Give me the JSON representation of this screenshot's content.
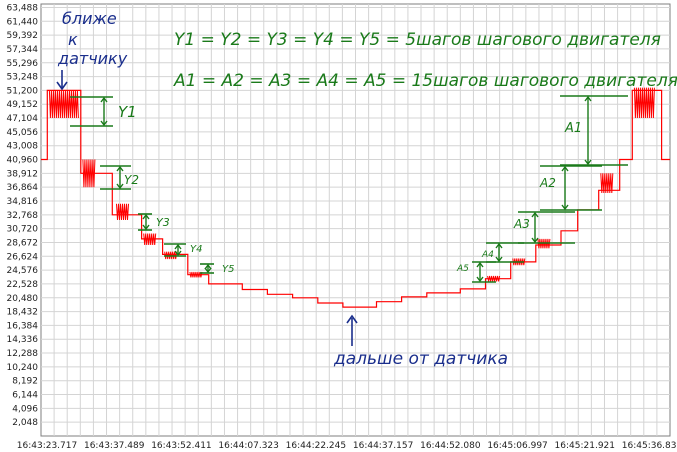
{
  "chart_data": {
    "type": "line",
    "title": "",
    "xlabel": "",
    "ylabel": "",
    "ylim": [
      0,
      64000
    ],
    "y_ticks": [
      "2,048",
      "4,096",
      "6,144",
      "8,192",
      "10,240",
      "12,288",
      "14,336",
      "16,384",
      "18,432",
      "20,480",
      "22,528",
      "24,576",
      "26,624",
      "28,672",
      "30,720",
      "32,768",
      "34,816",
      "36,864",
      "38,912",
      "40,960",
      "43,008",
      "45,056",
      "47,104",
      "49,152",
      "51,200",
      "53,248",
      "55,296",
      "57,344",
      "59,392",
      "61,440",
      "63,488"
    ],
    "x_ticks": [
      "16:43:23.717",
      "16:43:37.489",
      "16:43:52.411",
      "16:44:07.323",
      "16:44:22.245",
      "16:44:37.157",
      "16:44:52.080",
      "16:45:06.997",
      "16:45:21.921",
      "16:45:36.832"
    ],
    "grid": true,
    "series": [
      {
        "color": "#ff0000",
        "points": [
          [
            0,
            40960
          ],
          [
            1.5,
            40960
          ],
          [
            1.5,
            51200
          ],
          [
            9.5,
            51200
          ],
          [
            9.5,
            38912
          ],
          [
            17,
            38912
          ],
          [
            17,
            32768
          ],
          [
            24,
            32768
          ],
          [
            24,
            29200
          ],
          [
            29,
            29200
          ],
          [
            29,
            26900
          ],
          [
            35,
            26900
          ],
          [
            35,
            23900
          ],
          [
            40,
            23900
          ],
          [
            40,
            22528
          ],
          [
            48,
            22528
          ],
          [
            48,
            21700
          ],
          [
            54,
            21700
          ],
          [
            54,
            21000
          ],
          [
            60,
            21000
          ],
          [
            60,
            20480
          ],
          [
            66,
            20480
          ],
          [
            66,
            19700
          ],
          [
            72,
            19700
          ],
          [
            72,
            19100
          ],
          [
            80,
            19100
          ],
          [
            80,
            19900
          ],
          [
            86,
            19900
          ],
          [
            86,
            20600
          ],
          [
            92,
            20600
          ],
          [
            92,
            21200
          ],
          [
            100,
            21200
          ],
          [
            100,
            21800
          ],
          [
            106,
            21800
          ],
          [
            106,
            23300
          ],
          [
            112,
            23300
          ],
          [
            112,
            25800
          ],
          [
            118,
            25800
          ],
          [
            118,
            28300
          ],
          [
            124,
            28300
          ],
          [
            124,
            30400
          ],
          [
            128,
            30400
          ],
          [
            128,
            33500
          ],
          [
            133,
            33500
          ],
          [
            133,
            36400
          ],
          [
            138,
            36400
          ],
          [
            138,
            40960
          ],
          [
            141,
            40960
          ],
          [
            141,
            51200
          ],
          [
            148,
            51200
          ],
          [
            148,
            40960
          ],
          [
            150,
            40960
          ]
        ]
      }
    ],
    "noise_bursts": [
      {
        "x0": 2,
        "x1": 9,
        "y0": 47104,
        "y1": 51200
      },
      {
        "x0": 10,
        "x1": 13,
        "y0": 36864,
        "y1": 40960
      },
      {
        "x0": 18,
        "x1": 21,
        "y0": 32000,
        "y1": 34400
      },
      {
        "x0": 24.5,
        "x1": 27.5,
        "y0": 28300,
        "y1": 30000
      },
      {
        "x0": 29.5,
        "x1": 32.5,
        "y0": 26200,
        "y1": 27300
      },
      {
        "x0": 35.5,
        "x1": 38.5,
        "y0": 23500,
        "y1": 24300
      },
      {
        "x0": 106.5,
        "x1": 109.5,
        "y0": 22900,
        "y1": 23700
      },
      {
        "x0": 112.5,
        "x1": 115.5,
        "y0": 25300,
        "y1": 26300
      },
      {
        "x0": 118.5,
        "x1": 121.5,
        "y0": 27800,
        "y1": 29200
      },
      {
        "x0": 133.5,
        "x1": 136.5,
        "y0": 36000,
        "y1": 38912
      },
      {
        "x0": 141.5,
        "x1": 146.5,
        "y0": 47104,
        "y1": 51600
      }
    ],
    "annotations": {
      "top_left": [
        "ближе",
        "к",
        "датчику"
      ],
      "eq1": "Y1 = Y2 = Y3 = Y4 = Y5 = 5шагов шагового двигателя",
      "eq2": "A1 = A2 = A3 = A4 = A5 = 15шагов шагового двигателя",
      "bottom": "дальше от датчика",
      "labels_y": [
        "Y1",
        "Y2",
        "Y3",
        "Y4",
        "Y5"
      ],
      "labels_a": [
        "A1",
        "A2",
        "A3",
        "A4",
        "A5"
      ]
    }
  }
}
